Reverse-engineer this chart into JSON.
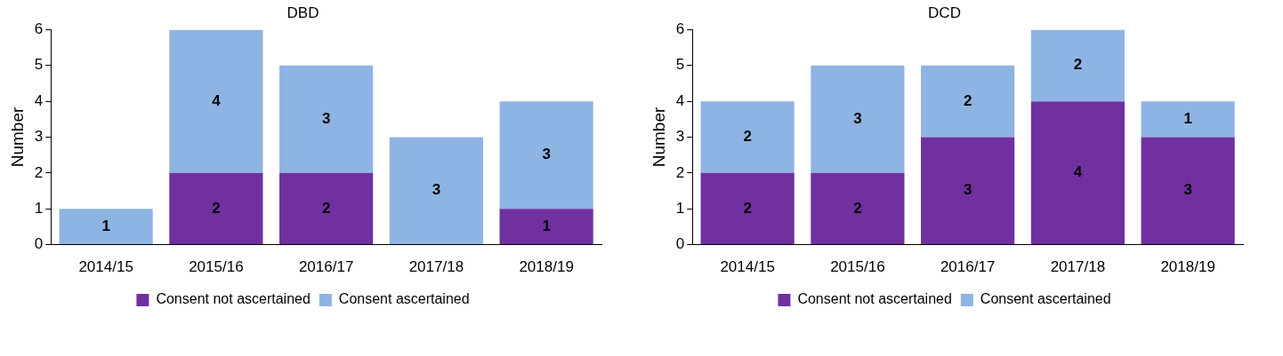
{
  "chart_data": [
    {
      "type": "bar",
      "title": "DBD",
      "ylabel": "Number",
      "categories": [
        "2014/15",
        "2015/16",
        "2016/17",
        "2017/18",
        "2018/19"
      ],
      "stacked": true,
      "ylim": [
        0,
        6
      ],
      "yticks": [
        0,
        1,
        2,
        3,
        4,
        5,
        6
      ],
      "grid": false,
      "legend": "bottom",
      "series": [
        {
          "name": "Consent not ascertained",
          "color": "#7030a0",
          "values": [
            0,
            2,
            2,
            0,
            1
          ],
          "value_labels": [
            null,
            "2",
            "2",
            null,
            "1"
          ]
        },
        {
          "name": "Consent ascertained",
          "color": "#8eb4e3",
          "values": [
            1,
            4,
            3,
            3,
            3
          ],
          "value_labels": [
            "1",
            "4",
            "3",
            "3",
            "3"
          ]
        }
      ]
    },
    {
      "type": "bar",
      "title": "DCD",
      "ylabel": "Number",
      "categories": [
        "2014/15",
        "2015/16",
        "2016/17",
        "2017/18",
        "2018/19"
      ],
      "stacked": true,
      "ylim": [
        0,
        6
      ],
      "yticks": [
        0,
        1,
        2,
        3,
        4,
        5,
        6
      ],
      "grid": false,
      "legend": "bottom",
      "series": [
        {
          "name": "Consent not ascertained",
          "color": "#7030a0",
          "values": [
            2,
            2,
            3,
            4,
            3
          ],
          "value_labels": [
            "2",
            "2",
            "3",
            "4",
            "3"
          ]
        },
        {
          "name": "Consent ascertained",
          "color": "#8eb4e3",
          "values": [
            2,
            3,
            2,
            2,
            1
          ],
          "value_labels": [
            "2",
            "3",
            "2",
            "2",
            "1"
          ]
        }
      ]
    }
  ]
}
